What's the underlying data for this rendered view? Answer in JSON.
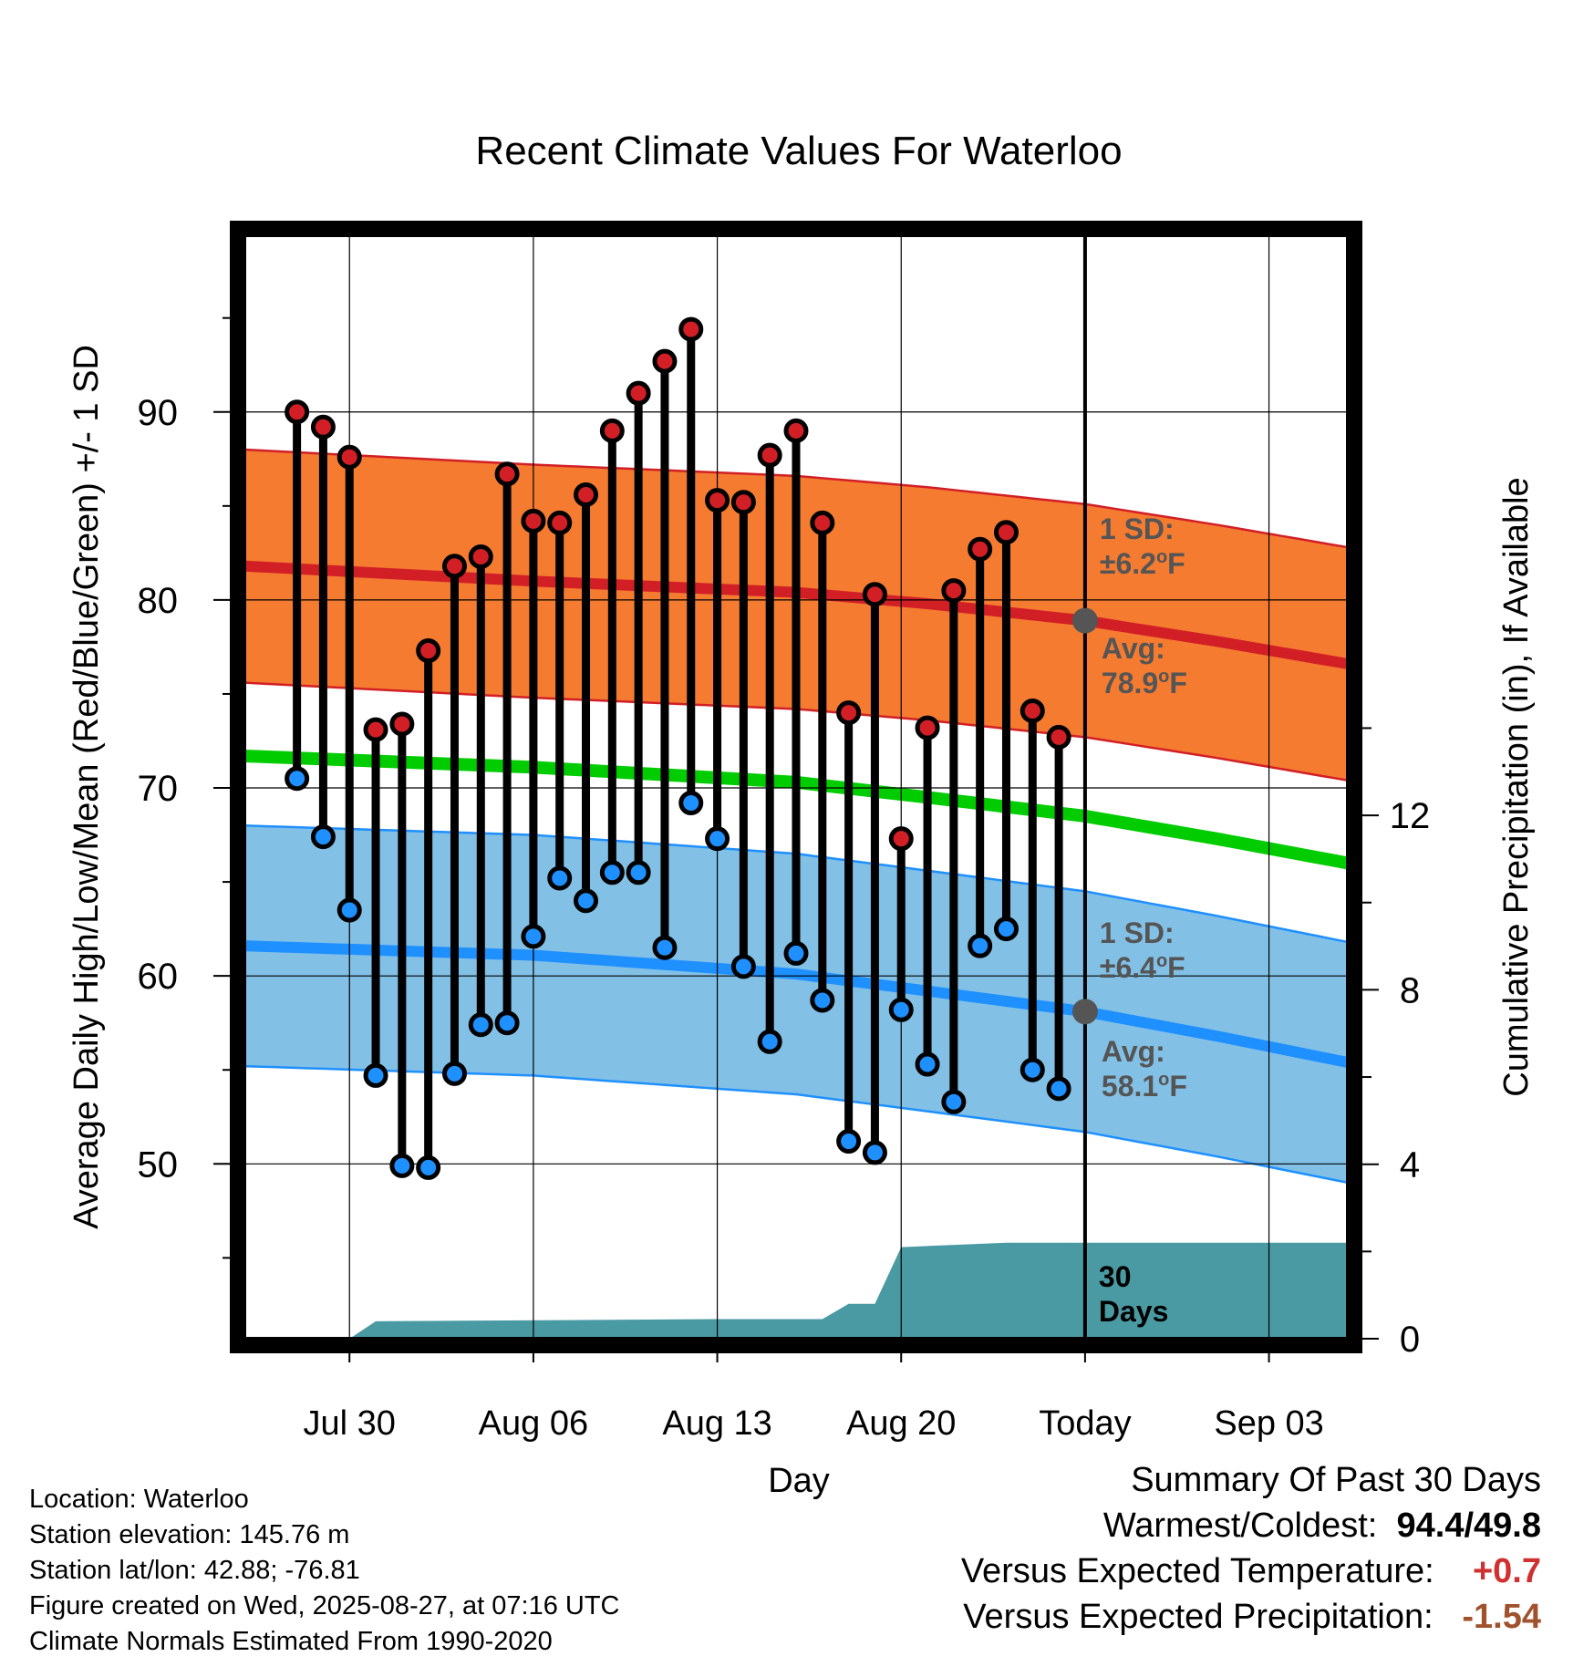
{
  "chart_data": {
    "type": "line",
    "title": "Recent Climate Values For Waterloo",
    "xlabel": "Day",
    "ylabel": "Average Daily High/Low/Mean (Red/Blue/Green) +/- 1 SD",
    "y2label": "Cumulative Precipitation (in), If Available",
    "ylim": [
      40.7,
      99.4
    ],
    "y2lim": [
      0,
      25.3
    ],
    "yticks": [
      50,
      60,
      70,
      80,
      90
    ],
    "y2ticks": [
      0,
      4,
      8,
      12
    ],
    "xlim": [
      "2025-07-26",
      "2025-09-06"
    ],
    "xticks": [
      {
        "date": "2025-07-30",
        "label": "Jul 30"
      },
      {
        "date": "2025-08-06",
        "label": "Aug 06"
      },
      {
        "date": "2025-08-13",
        "label": "Aug 13"
      },
      {
        "date": "2025-08-20",
        "label": "Aug 20"
      },
      {
        "date": "2025-08-27",
        "label": "Today"
      },
      {
        "date": "2025-09-03",
        "label": "Sep 03"
      }
    ],
    "grid": true,
    "today": "2025-08-27",
    "daily": [
      {
        "date": "2025-07-28",
        "high": 90.0,
        "low": 70.5
      },
      {
        "date": "2025-07-29",
        "high": 89.2,
        "low": 67.4
      },
      {
        "date": "2025-07-30",
        "high": 87.6,
        "low": 63.5
      },
      {
        "date": "2025-07-31",
        "high": 73.1,
        "low": 54.7
      },
      {
        "date": "2025-08-01",
        "high": 73.4,
        "low": 49.9
      },
      {
        "date": "2025-08-02",
        "high": 77.3,
        "low": 49.8
      },
      {
        "date": "2025-08-03",
        "high": 81.8,
        "low": 54.8
      },
      {
        "date": "2025-08-04",
        "high": 82.3,
        "low": 57.4
      },
      {
        "date": "2025-08-05",
        "high": 86.7,
        "low": 57.5
      },
      {
        "date": "2025-08-06",
        "high": 84.2,
        "low": 62.1
      },
      {
        "date": "2025-08-07",
        "high": 84.1,
        "low": 65.2
      },
      {
        "date": "2025-08-08",
        "high": 85.6,
        "low": 64.0
      },
      {
        "date": "2025-08-09",
        "high": 89.0,
        "low": 65.5
      },
      {
        "date": "2025-08-10",
        "high": 91.0,
        "low": 65.5
      },
      {
        "date": "2025-08-11",
        "high": 92.7,
        "low": 61.5
      },
      {
        "date": "2025-08-12",
        "high": 94.4,
        "low": 69.2
      },
      {
        "date": "2025-08-13",
        "high": 85.3,
        "low": 67.3
      },
      {
        "date": "2025-08-14",
        "high": 85.2,
        "low": 60.5
      },
      {
        "date": "2025-08-15",
        "high": 87.7,
        "low": 56.5
      },
      {
        "date": "2025-08-16",
        "high": 89.0,
        "low": 61.2
      },
      {
        "date": "2025-08-17",
        "high": 84.1,
        "low": 58.7
      },
      {
        "date": "2025-08-18",
        "high": 74.0,
        "low": 51.2
      },
      {
        "date": "2025-08-19",
        "high": 80.3,
        "low": 50.6
      },
      {
        "date": "2025-08-20",
        "high": 67.3,
        "low": 58.2
      },
      {
        "date": "2025-08-21",
        "high": 73.2,
        "low": 55.3
      },
      {
        "date": "2025-08-22",
        "high": 80.5,
        "low": 53.3
      },
      {
        "date": "2025-08-23",
        "high": 82.7,
        "low": 61.6
      },
      {
        "date": "2025-08-24",
        "high": 83.6,
        "low": 62.5
      },
      {
        "date": "2025-08-25",
        "high": 74.1,
        "low": 55.0
      },
      {
        "date": "2025-08-26",
        "high": 72.7,
        "low": 54.0
      }
    ],
    "normal_high": {
      "x": [
        "2025-07-26",
        "2025-08-06",
        "2025-08-16",
        "2025-08-21",
        "2025-08-27",
        "2025-09-01",
        "2025-09-06"
      ],
      "mean": [
        81.8,
        81.0,
        80.4,
        79.8,
        78.9,
        77.8,
        76.6
      ],
      "sd": 6.2
    },
    "normal_low": {
      "x": [
        "2025-07-26",
        "2025-08-06",
        "2025-08-16",
        "2025-08-21",
        "2025-08-27",
        "2025-09-01",
        "2025-09-06"
      ],
      "mean": [
        61.6,
        61.1,
        60.1,
        59.2,
        58.1,
        56.8,
        55.4
      ],
      "sd": 6.4
    },
    "normal_mean": {
      "x": [
        "2025-07-26",
        "2025-08-06",
        "2025-08-16",
        "2025-08-21",
        "2025-08-27",
        "2025-09-01",
        "2025-09-06"
      ],
      "values": [
        71.7,
        71.1,
        70.3,
        69.5,
        68.5,
        67.3,
        66.0
      ]
    },
    "precipitation": {
      "x": [
        "2025-07-30",
        "2025-07-31",
        "2025-08-13",
        "2025-08-17",
        "2025-08-18",
        "2025-08-19",
        "2025-08-20",
        "2025-08-24",
        "2025-09-06"
      ],
      "values": [
        0.0,
        0.4,
        0.45,
        0.45,
        0.8,
        0.8,
        2.1,
        2.2,
        2.2
      ]
    },
    "annotations": {
      "high_sd": [
        "1 SD:",
        "±6.2°F"
      ],
      "high_avg": [
        "Avg:",
        "78.9°F"
      ],
      "low_sd": [
        "1 SD:",
        "±6.4°F"
      ],
      "low_avg": [
        "Avg:",
        "58.1°F"
      ],
      "precip": [
        "30",
        "Days"
      ]
    },
    "colors": {
      "high": "#d21f26",
      "high_band": "#f47b30",
      "low": "#1e90ff",
      "low_band": "#82c0e6",
      "mean": "#00cc00",
      "precip": "#4a9aa4",
      "annotation": "#555555"
    }
  },
  "info": [
    "Location: Waterloo",
    "Station elevation: 145.76 m",
    "Station lat/lon: 42.88; -76.81",
    "Figure created on Wed, 2025-08-27, at 07:16 UTC",
    "Climate Normals Estimated From 1990-2020"
  ],
  "summary": {
    "heading": "Summary Of Past 30 Days",
    "warmest_label": "Warmest/Coldest:",
    "warmest_value": "94.4",
    "coldest_value": "49.8",
    "temp_label": "Versus Expected Temperature:",
    "temp_value": "+0.7",
    "precip_label": "Versus Expected Precipitation:",
    "precip_value": "-1.54"
  }
}
